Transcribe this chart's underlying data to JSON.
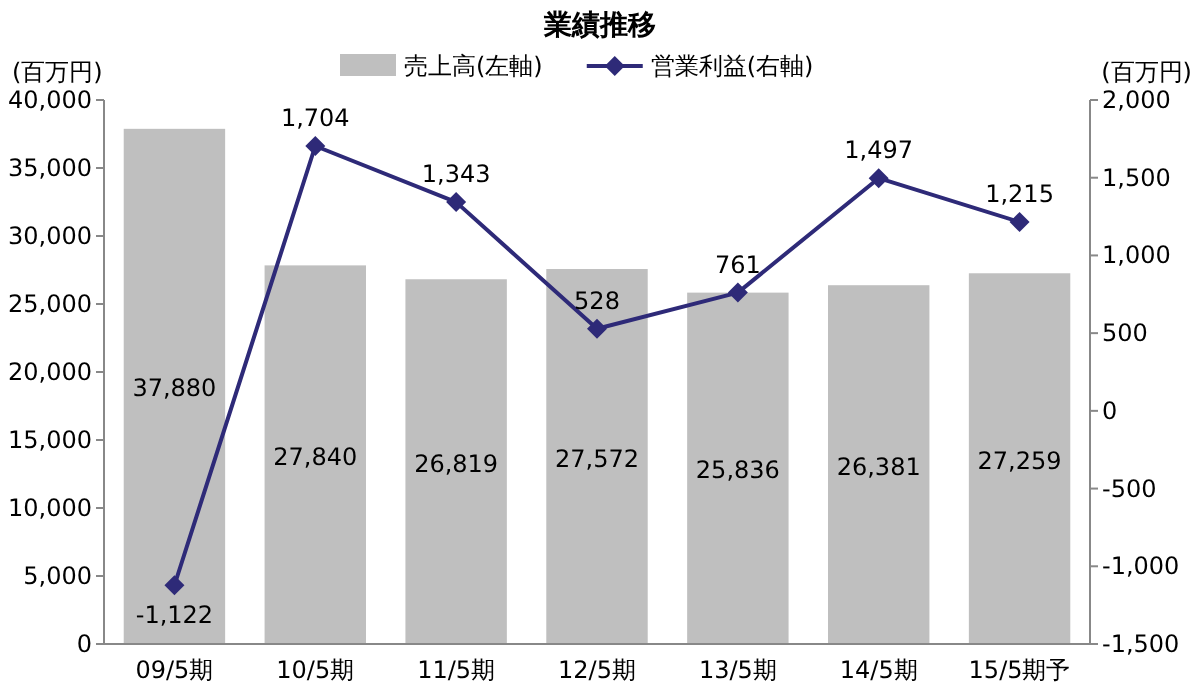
{
  "chart_data": {
    "type": "bar",
    "title": "業績推移",
    "ylabel": "(百万円)",
    "y2label": "(百万円)",
    "categories": [
      "09/5期",
      "10/5期",
      "11/5期",
      "12/5期",
      "13/5期",
      "14/5期",
      "15/5期予"
    ],
    "series": [
      {
        "name": "売上高(左軸)",
        "color": "#bfbfbf",
        "values": [
          37880,
          27840,
          26819,
          27572,
          25836,
          26381,
          27259
        ],
        "value_labels": [
          "37,880",
          "27,840",
          "26,819",
          "27,572",
          "25,836",
          "26,381",
          "27,259"
        ]
      },
      {
        "name": "営業利益(右軸)",
        "type": "line",
        "axis": "y2",
        "color": "#2e2a78",
        "values": [
          -1122,
          1704,
          1343,
          528,
          761,
          1497,
          1215
        ],
        "value_labels": [
          "-1,122",
          "1,704",
          "1,343",
          "528",
          "761",
          "1,497",
          "1,215"
        ]
      }
    ],
    "ylim": [
      0,
      40000
    ],
    "yticks": [
      0,
      {
        "value": 5000,
        "label": "5,000"
      },
      {
        "value": 10000,
        "label": "10,000"
      },
      {
        "value": 15000,
        "label": "15,000"
      },
      {
        "value": 20000,
        "label": "20,000"
      },
      {
        "value": 25000,
        "label": "25,000"
      },
      {
        "value": 30000,
        "label": "30,000"
      },
      {
        "value": 35000,
        "label": "35,000"
      },
      {
        "value": 40000,
        "label": "40,000"
      }
    ],
    "y2lim": [
      -1500,
      2000
    ],
    "y2ticks": [
      {
        "value": -1500,
        "label": "-1,500"
      },
      {
        "value": -1000,
        "label": "-1,000"
      },
      -500,
      0,
      500,
      {
        "value": 1000,
        "label": "1,000"
      },
      {
        "value": 1500,
        "label": "1,500"
      },
      {
        "value": 2000,
        "label": "2,000"
      }
    ],
    "marker": "diamond",
    "legend": "top",
    "grid": false
  }
}
